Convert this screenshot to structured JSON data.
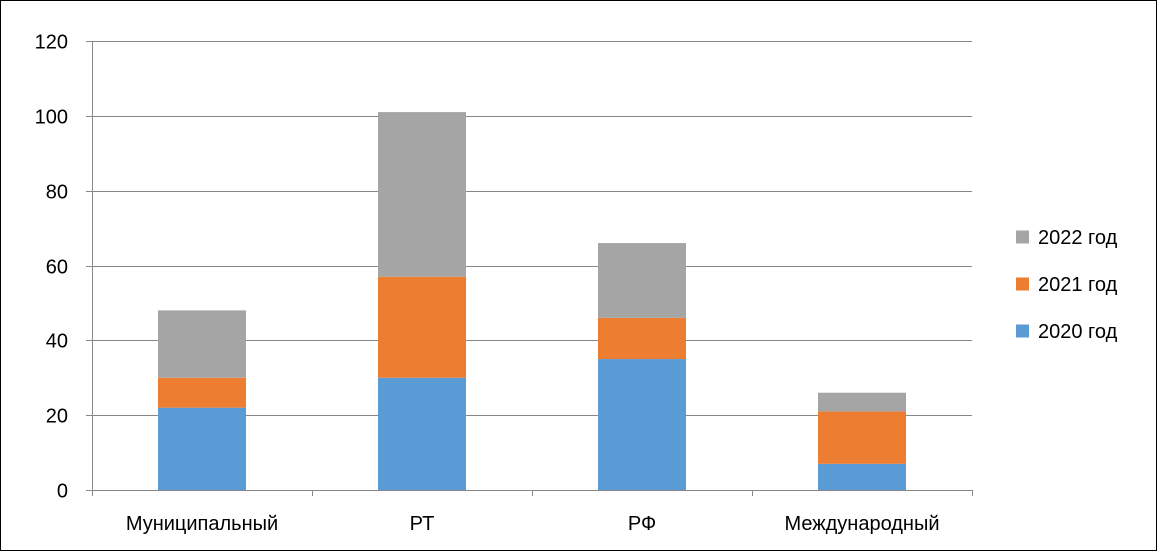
{
  "chart_data": {
    "type": "bar",
    "stacked": true,
    "categories": [
      "Муниципальный",
      "РТ",
      "РФ",
      "Международный"
    ],
    "series": [
      {
        "name": "2020 год",
        "values": [
          22,
          30,
          35,
          7
        ],
        "color": "#5B9BD5"
      },
      {
        "name": "2021 год",
        "values": [
          8,
          27,
          11,
          14
        ],
        "color": "#ED7D31"
      },
      {
        "name": "2022 год",
        "values": [
          18,
          44,
          20,
          5
        ],
        "color": "#A5A5A5"
      }
    ],
    "ylim": [
      0,
      120
    ],
    "yticks": [
      0,
      20,
      40,
      60,
      80,
      100,
      120
    ],
    "grid": true,
    "legend_position": "right",
    "gridline_color": "#888888",
    "axis_color": "#888888"
  }
}
